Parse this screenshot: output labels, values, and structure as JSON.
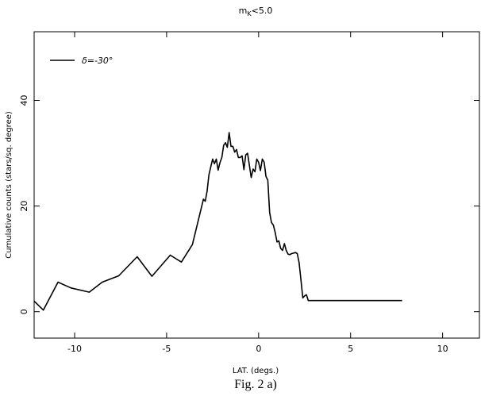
{
  "figure": {
    "caption": "Fig. 2 a)"
  },
  "chart_data": {
    "type": "line",
    "title": "m_K<5.0",
    "title_main": "m",
    "title_sub": "K",
    "title_tail": "<5.0",
    "xlabel": "LAT. (degs.)",
    "ylabel": "Cumulative counts (stars/sq. degree)",
    "xlim": [
      -12.2,
      12
    ],
    "ylim": [
      -5,
      53
    ],
    "xticks": [
      -10,
      -5,
      0,
      5,
      10
    ],
    "yticks": [
      0,
      20,
      40
    ],
    "xtick_labels": [
      "-10",
      "-5",
      "0",
      "5",
      "10"
    ],
    "ytick_labels": [
      "0",
      "20",
      "40"
    ],
    "grid": false,
    "legend_position": "top-left",
    "series": [
      {
        "name": "δ=-30°",
        "color": "#000000",
        "x": [
          -12.2,
          -11.7,
          -10.9,
          -10.2,
          -9.2,
          -8.5,
          -7.6,
          -6.6,
          -5.8,
          -4.8,
          -4.2,
          -3.6,
          -3.0,
          -2.9,
          -2.8,
          -2.7,
          -2.6,
          -2.5,
          -2.4,
          -2.3,
          -2.2,
          -2.1,
          -2.0,
          -1.9,
          -1.8,
          -1.7,
          -1.6,
          -1.5,
          -1.4,
          -1.3,
          -1.2,
          -1.1,
          -1.0,
          -0.9,
          -0.8,
          -0.7,
          -0.6,
          -0.5,
          -0.4,
          -0.3,
          -0.2,
          -0.1,
          0.0,
          0.1,
          0.2,
          0.3,
          0.4,
          0.5,
          0.6,
          0.7,
          0.8,
          0.9,
          1.0,
          1.1,
          1.2,
          1.3,
          1.4,
          1.5,
          1.6,
          1.7,
          1.8,
          1.9,
          2.0,
          2.1,
          2.2,
          2.3,
          2.4,
          2.5,
          2.6,
          2.7,
          3.2,
          3.8,
          4.3,
          5.0,
          5.7,
          6.4,
          7.1,
          7.8
        ],
        "y": [
          2.0,
          0.3,
          5.6,
          4.5,
          3.7,
          5.6,
          6.8,
          10.4,
          6.7,
          10.7,
          9.4,
          12.7,
          21.3,
          20.9,
          22.8,
          25.9,
          27.4,
          28.9,
          28.0,
          28.9,
          26.8,
          28.2,
          29.2,
          31.5,
          32.0,
          31.1,
          33.9,
          31.3,
          31.3,
          30.2,
          30.7,
          29.2,
          29.2,
          29.5,
          26.9,
          29.7,
          30.0,
          27.7,
          25.4,
          27.0,
          26.5,
          28.9,
          28.3,
          26.7,
          28.9,
          28.3,
          25.6,
          24.9,
          18.8,
          16.9,
          16.4,
          15.0,
          13.2,
          13.4,
          12.0,
          11.6,
          12.9,
          11.6,
          10.9,
          10.8,
          11.0,
          11.1,
          11.2,
          11.0,
          9.3,
          6.1,
          2.6,
          3.0,
          3.2,
          2.1,
          2.1,
          2.1,
          2.1,
          2.1,
          2.1,
          2.1,
          2.1,
          2.1
        ]
      }
    ]
  }
}
